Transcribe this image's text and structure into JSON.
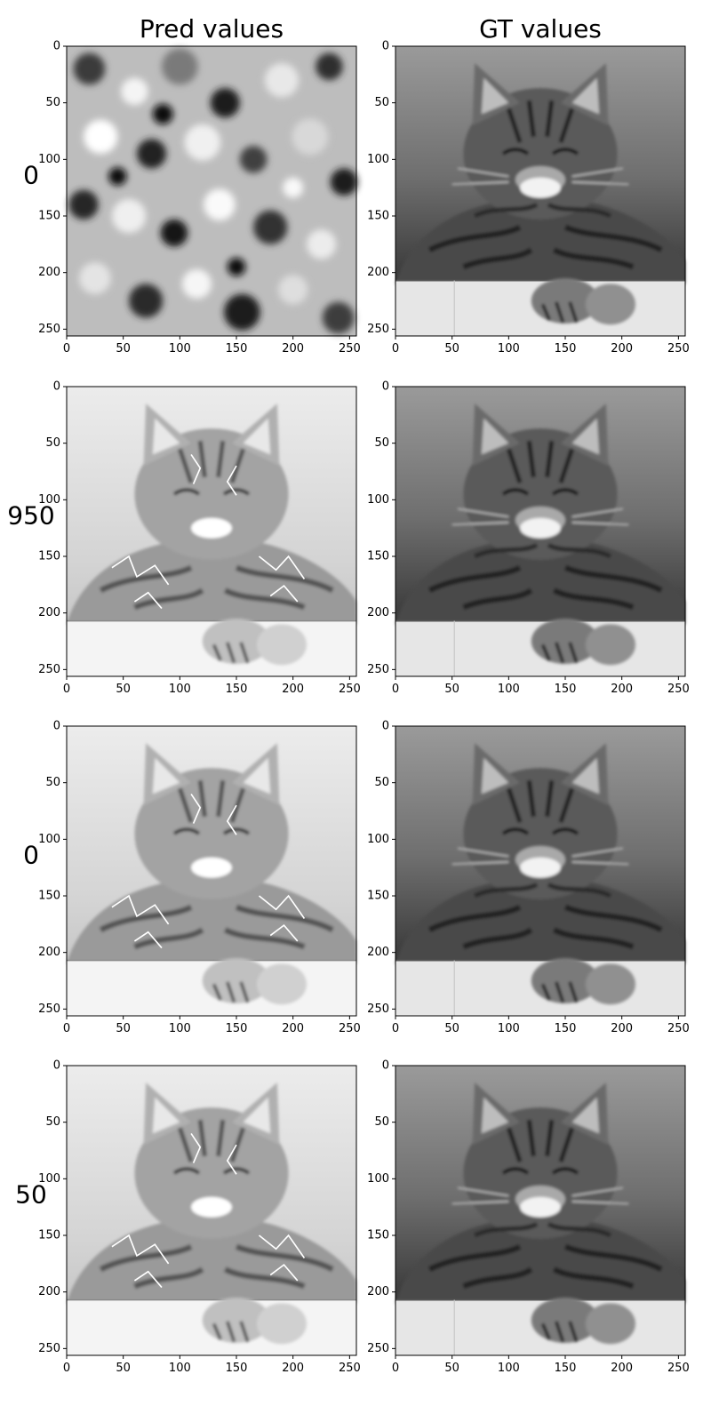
{
  "chart_data": {
    "type": "heatmap",
    "colormap": "gray",
    "column_titles": [
      "Pred values",
      "GT values"
    ],
    "row_labels": [
      "0",
      "950",
      "0",
      "50"
    ],
    "axes": {
      "xlim": [
        0,
        256
      ],
      "ylim": [
        256,
        0
      ],
      "y_inverted": true,
      "x_ticks": [
        "0",
        "50",
        "100",
        "150",
        "200",
        "250"
      ],
      "y_ticks": [
        "0",
        "50",
        "100",
        "150",
        "200",
        "250"
      ]
    },
    "panels": [
      {
        "row": 0,
        "column": "Pred values",
        "content": "noise"
      },
      {
        "row": 0,
        "column": "GT values",
        "content": "cat"
      },
      {
        "row": 1,
        "column": "Pred values",
        "content": "cat-reconstruction"
      },
      {
        "row": 1,
        "column": "GT values",
        "content": "cat"
      },
      {
        "row": 2,
        "column": "Pred values",
        "content": "cat-reconstruction"
      },
      {
        "row": 2,
        "column": "GT values",
        "content": "cat"
      },
      {
        "row": 3,
        "column": "Pred values",
        "content": "cat-reconstruction"
      },
      {
        "row": 3,
        "column": "GT values",
        "content": "cat"
      }
    ]
  }
}
